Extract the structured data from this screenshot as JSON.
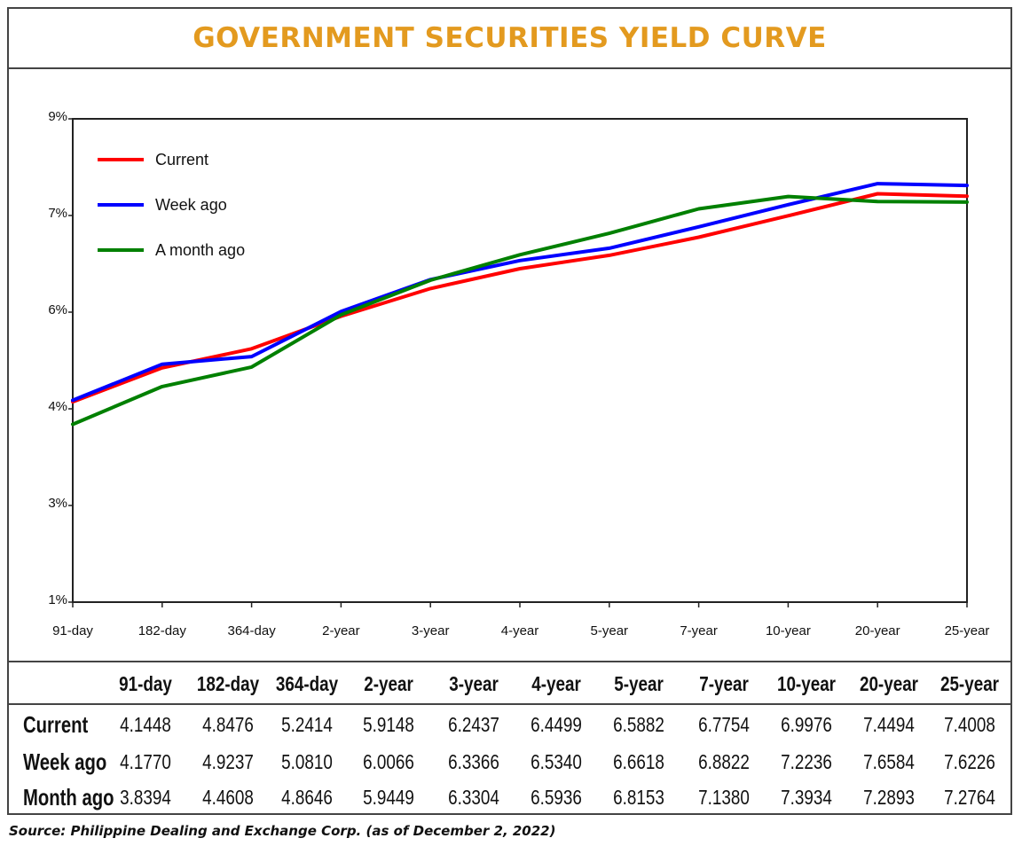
{
  "header": {
    "title": "GOVERNMENT SECURITIES YIELD CURVE"
  },
  "chart_data": {
    "type": "line",
    "title": "GOVERNMENT SECURITIES YIELD CURVE",
    "categories": [
      "91-day",
      "182-day",
      "364-day",
      "2-year",
      "3-year",
      "4-year",
      "5-year",
      "7-year",
      "10-year",
      "20-year",
      "25-year"
    ],
    "y_ticks": [
      {
        "value": 1,
        "label": "1%"
      },
      {
        "value": 3,
        "label": "3%"
      },
      {
        "value": 4,
        "label": "4%"
      },
      {
        "value": 6,
        "label": "6%"
      },
      {
        "value": 7,
        "label": "7%"
      },
      {
        "value": 9,
        "label": "9%"
      }
    ],
    "grid": false,
    "legend_position": "top-left",
    "series": [
      {
        "name": "Current",
        "color": "#ff0000",
        "values": [
          4.1448,
          4.8476,
          5.2414,
          5.9148,
          6.2437,
          6.4499,
          6.5882,
          6.7754,
          6.9976,
          7.4494,
          7.4008
        ]
      },
      {
        "name": "Week ago",
        "color": "#0000ff",
        "values": [
          4.177,
          4.9237,
          5.081,
          6.0066,
          6.3366,
          6.534,
          6.6618,
          6.8822,
          7.2236,
          7.6584,
          7.6226
        ]
      },
      {
        "name": "A month ago",
        "color": "#008000",
        "values": [
          3.8394,
          4.4608,
          4.8646,
          5.9449,
          6.3304,
          6.5936,
          6.8153,
          7.138,
          7.3934,
          7.2893,
          7.2764
        ]
      }
    ]
  },
  "table": {
    "headers": [
      "91-day",
      "182-day",
      "364-day",
      "2-year",
      "3-year",
      "4-year",
      "5-year",
      "7-year",
      "10-year",
      "20-year",
      "25-year"
    ],
    "rows": [
      {
        "label": "Current",
        "values": [
          "4.1448",
          "4.8476",
          "5.2414",
          "5.9148",
          "6.2437",
          "6.4499",
          "6.5882",
          "6.7754",
          "6.9976",
          "7.4494",
          "7.4008"
        ]
      },
      {
        "label": "Week ago",
        "values": [
          "4.1770",
          "4.9237",
          "5.0810",
          "6.0066",
          "6.3366",
          "6.5340",
          "6.6618",
          "6.8822",
          "7.2236",
          "7.6584",
          "7.6226"
        ]
      },
      {
        "label": "Month ago",
        "values": [
          "3.8394",
          "4.4608",
          "4.8646",
          "5.9449",
          "6.3304",
          "6.5936",
          "6.8153",
          "7.1380",
          "7.3934",
          "7.2893",
          "7.2764"
        ]
      }
    ]
  },
  "source": "Source: Philippine Dealing and Exchange Corp. (as of December 2, 2022)"
}
